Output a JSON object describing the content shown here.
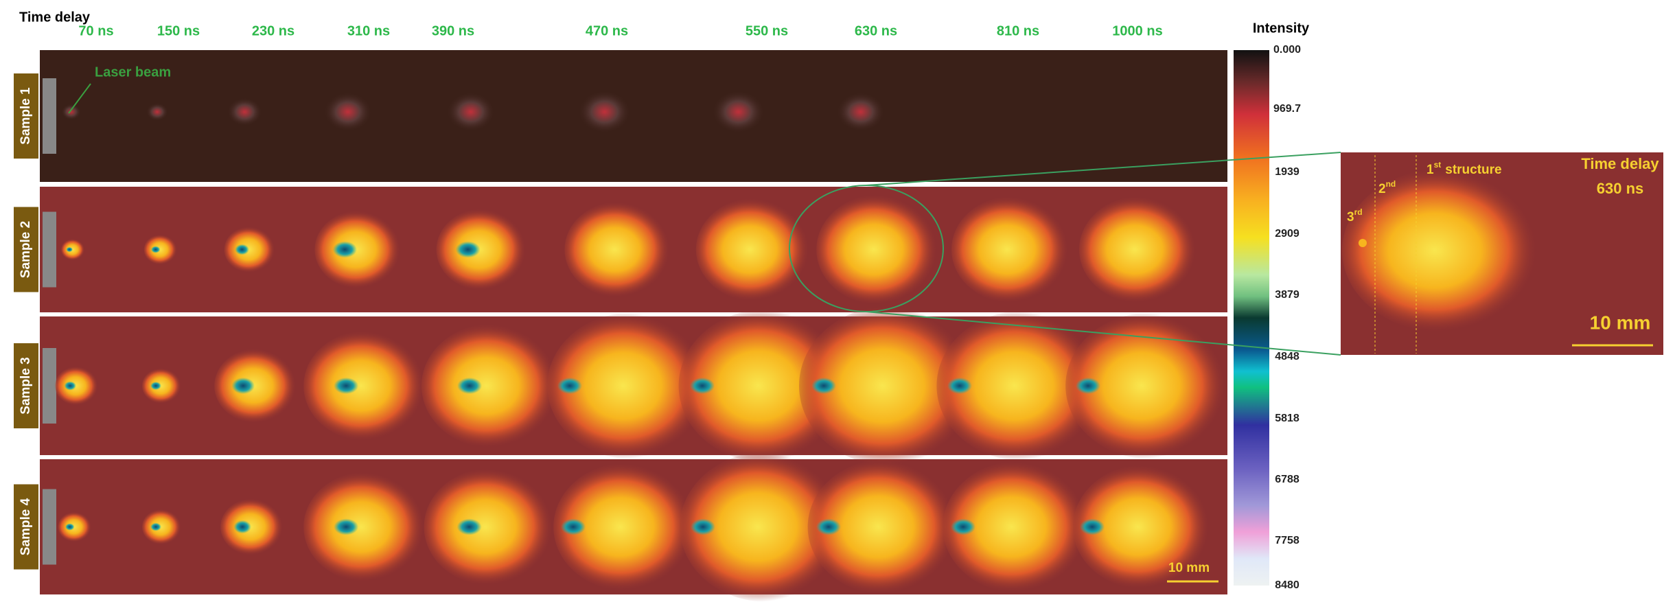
{
  "header": {
    "time_delay": "Time delay",
    "delays": [
      "70 ns",
      "150 ns",
      "230 ns",
      "310 ns",
      "390 ns",
      "470 ns",
      "550 ns",
      "630 ns",
      "810 ns",
      "1000 ns"
    ]
  },
  "samples": [
    "Sample 1",
    "Sample 2",
    "Sample 3",
    "Sample 4"
  ],
  "annotation": "Laser beam",
  "scale_bar": "10 mm",
  "colorbar": {
    "title": "Intensity",
    "ticks": [
      "0.000",
      "969.7",
      "1939",
      "2909",
      "3879",
      "4848",
      "5818",
      "6788",
      "7758",
      "8480"
    ]
  },
  "inset": {
    "third": {
      "num": "3",
      "sup": "rd"
    },
    "second": {
      "num": "2",
      "sup": "nd"
    },
    "first": {
      "num": "1",
      "sup": "st",
      "text": "structure"
    },
    "time_delay": [
      "Time delay",
      "630 ns"
    ],
    "scale_bar": "10 mm"
  }
}
